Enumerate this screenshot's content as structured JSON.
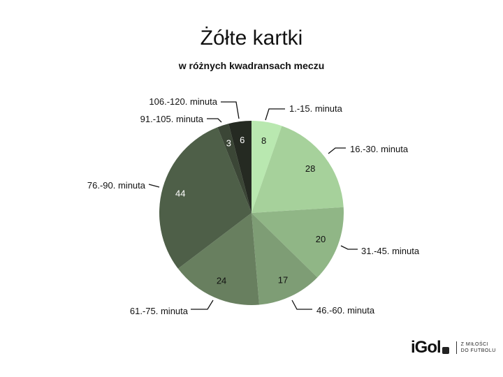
{
  "chart_data": {
    "type": "pie",
    "title": "Żółte kartki",
    "subtitle": "w różnych kwadransach meczu",
    "categories": [
      "1.-15. minuta",
      "16.-30. minuta",
      "31.-45. minuta",
      "46.-60. minuta",
      "61.-75. minuta",
      "76.-90. minuta",
      "91.-105. minuta",
      "106.-120. minuta"
    ],
    "values": [
      8,
      28,
      20,
      17,
      24,
      44,
      3,
      6
    ],
    "colors": [
      "#b9e8b0",
      "#a6d19b",
      "#90b686",
      "#7e9d75",
      "#687f5f",
      "#4e5f48",
      "#3b4636",
      "#252a22"
    ],
    "label_colors": [
      "#111",
      "#111",
      "#111",
      "#111",
      "#111",
      "#fff",
      "#fff",
      "#fff"
    ]
  },
  "logo": {
    "brand": "iGol",
    "tagline_1": "Z MIŁOŚCI",
    "tagline_2": "DO FUTBOLU"
  }
}
